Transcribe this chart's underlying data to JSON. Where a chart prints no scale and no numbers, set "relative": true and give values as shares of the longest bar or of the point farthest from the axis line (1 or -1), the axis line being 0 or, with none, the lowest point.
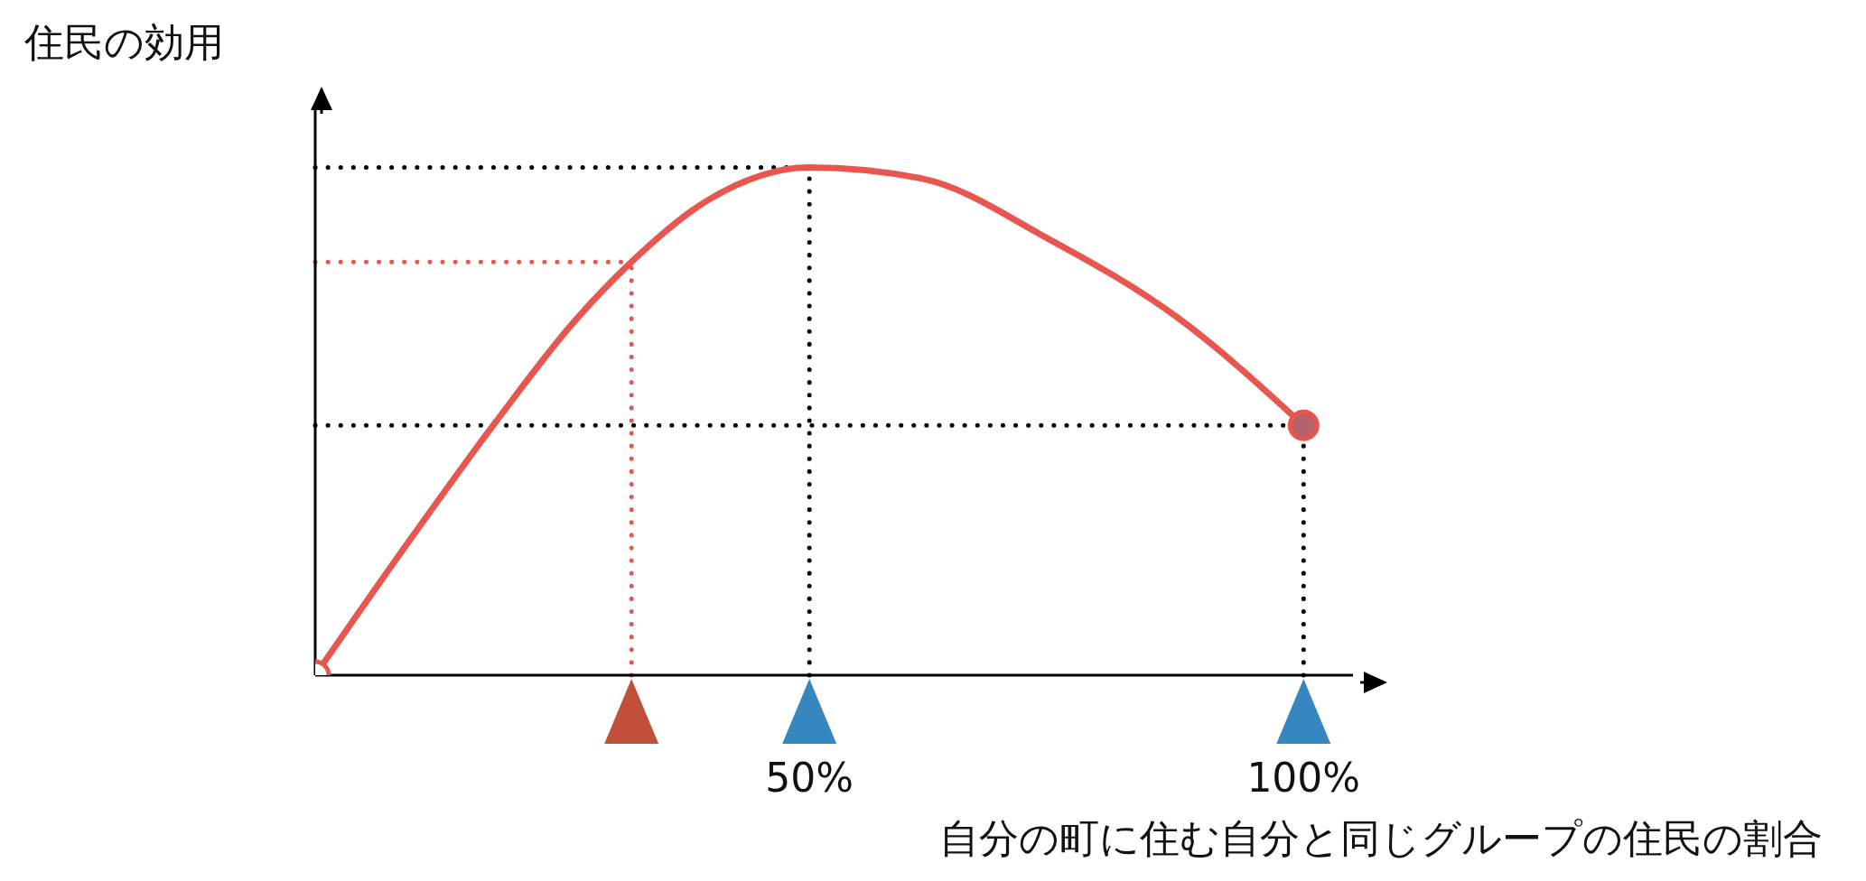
{
  "chart_data": {
    "type": "line",
    "ylabel": "住民の効用",
    "xlabel": "自分の町に住む自分と同じグループの住民の割合",
    "relative": true,
    "xlim": [
      0,
      105
    ],
    "xticks": [
      {
        "value": 50,
        "label": "50%"
      },
      {
        "value": 100,
        "label": "100%"
      }
    ],
    "marker": "none",
    "line_style": "solid",
    "series": [
      {
        "color": "#e8574f",
        "x": [
          0,
          9.2,
          18.2,
          26.1,
          32,
          39.6,
          50,
          61.4,
          74.3,
          87.2,
          100
        ],
        "values": [
          0,
          0.256,
          0.497,
          0.694,
          0.814,
          0.934,
          1,
          0.978,
          0.858,
          0.705,
          0.492
        ]
      },
      {
        "type": "scatter",
        "marker": "circle",
        "x": [
          0,
          100
        ],
        "values": [
          0,
          0.492
        ],
        "colors": [
          "#ffffff",
          "#b5636a"
        ]
      }
    ],
    "ref_lines": [
      {
        "axis": "y",
        "value": 1,
        "color": "#000000",
        "line_style": "dotted"
      },
      {
        "axis": "x",
        "value": 50,
        "color": "#000000",
        "line_style": "dotted"
      },
      {
        "axis": "y",
        "value": 0.814,
        "color": "#e8574f",
        "line_style": "dotted"
      },
      {
        "axis": "x",
        "value": 32,
        "color": "#e8574f",
        "line_style": "dotted"
      },
      {
        "axis": "y",
        "value": 0.492,
        "color": "#000000",
        "line_style": "dotted"
      },
      {
        "axis": "x",
        "value": 100,
        "color": "#000000",
        "line_style": "dotted"
      }
    ]
  }
}
